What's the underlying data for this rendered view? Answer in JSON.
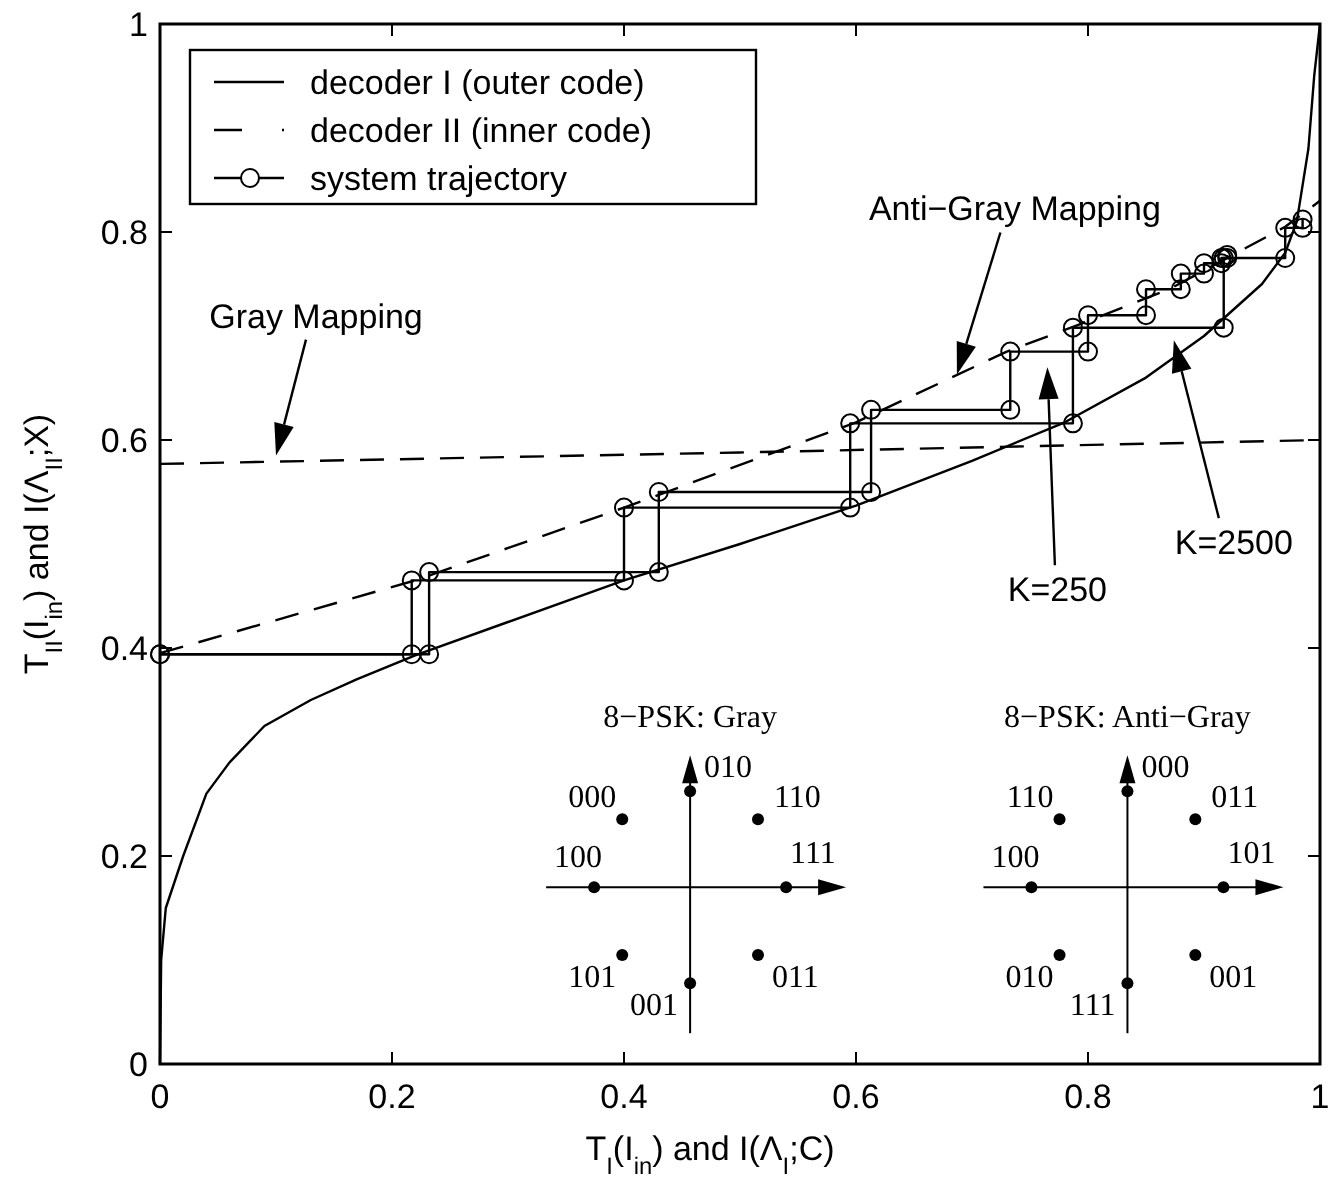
{
  "chart_data": {
    "type": "line",
    "xlabel": "T$_{I}$(I$_{in}$) and I(Λ$_{I}$;C)",
    "ylabel": "T$_{II}$(I$_{in}$) and I(Λ$_{II}$;X)",
    "xlim": [
      0,
      1
    ],
    "ylim": [
      0,
      1
    ],
    "xticks": [
      0,
      0.2,
      0.4,
      0.6,
      0.8,
      1
    ],
    "yticks": [
      0,
      0.2,
      0.4,
      0.6,
      0.8,
      1
    ],
    "grid": false,
    "legend": "top left",
    "series": [
      {
        "name": "decoder I (outer code)",
        "color": "#000000",
        "line_style": "solid",
        "marker": "none",
        "x": [
          0,
          0.001,
          0.005,
          0.02,
          0.04,
          0.06,
          0.09,
          0.13,
          0.17,
          0.22,
          0.3,
          0.4,
          0.5,
          0.6,
          0.7,
          0.78,
          0.85,
          0.9,
          0.95,
          0.97,
          0.98,
          0.99,
          0.995,
          1
        ],
        "values": [
          0,
          0.1,
          0.15,
          0.2,
          0.26,
          0.29,
          0.325,
          0.35,
          0.37,
          0.393,
          0.425,
          0.465,
          0.5,
          0.537,
          0.58,
          0.617,
          0.66,
          0.7,
          0.75,
          0.78,
          0.81,
          0.88,
          0.95,
          1
        ]
      },
      {
        "name": "decoder II (inner code)",
        "color": "#000000",
        "line_style": "dashed",
        "marker": "none",
        "x": [
          0,
          0.22,
          0.4,
          0.6,
          0.73,
          0.79,
          0.87,
          0.97,
          1
        ],
        "values": [
          0.395,
          0.465,
          0.535,
          0.617,
          0.685,
          0.71,
          0.745,
          0.805,
          0.83
        ]
      },
      {
        "color": "#000000",
        "line_style": "dashed",
        "marker": "none",
        "x": [
          0,
          0.5,
          1
        ],
        "values": [
          0.577,
          0.588,
          0.6
        ]
      },
      {
        "name": "system trajectory",
        "color": "#000000",
        "line_style": "solid",
        "marker": "circle",
        "x": [
          0,
          0.217,
          0.217,
          0.4,
          0.4,
          0.595,
          0.595,
          0.787,
          0.787,
          0.917,
          0.917,
          0.97,
          0.97,
          0.985,
          0.985
        ],
        "values": [
          0.394,
          0.394,
          0.465,
          0.465,
          0.535,
          0.535,
          0.616,
          0.616,
          0.708,
          0.708,
          0.775,
          0.775,
          0.804,
          0.804,
          0.812
        ]
      },
      {
        "color": "#000000",
        "line_style": "solid",
        "marker": "circle",
        "x": [
          0,
          0.232,
          0.232,
          0.43,
          0.43,
          0.613,
          0.613,
          0.733,
          0.733,
          0.8,
          0.8,
          0.85,
          0.85,
          0.88,
          0.88,
          0.9,
          0.9,
          0.915,
          0.915,
          0.92,
          0.92
        ],
        "values": [
          0.394,
          0.394,
          0.473,
          0.473,
          0.55,
          0.55,
          0.629,
          0.629,
          0.685,
          0.685,
          0.72,
          0.72,
          0.745,
          0.745,
          0.76,
          0.76,
          0.77,
          0.77,
          0.775,
          0.775,
          0.778
        ]
      }
    ],
    "annotations": [
      "Gray Mapping",
      "Anti−Gray Mapping",
      "K=250",
      "K=2500",
      "8−PSK: Gray",
      "111",
      "110",
      "010",
      "000",
      "100",
      "101",
      "001",
      "011",
      "8−PSK: Anti−Gray",
      "101",
      "011",
      "000",
      "110",
      "100",
      "010",
      "111",
      "001"
    ]
  }
}
